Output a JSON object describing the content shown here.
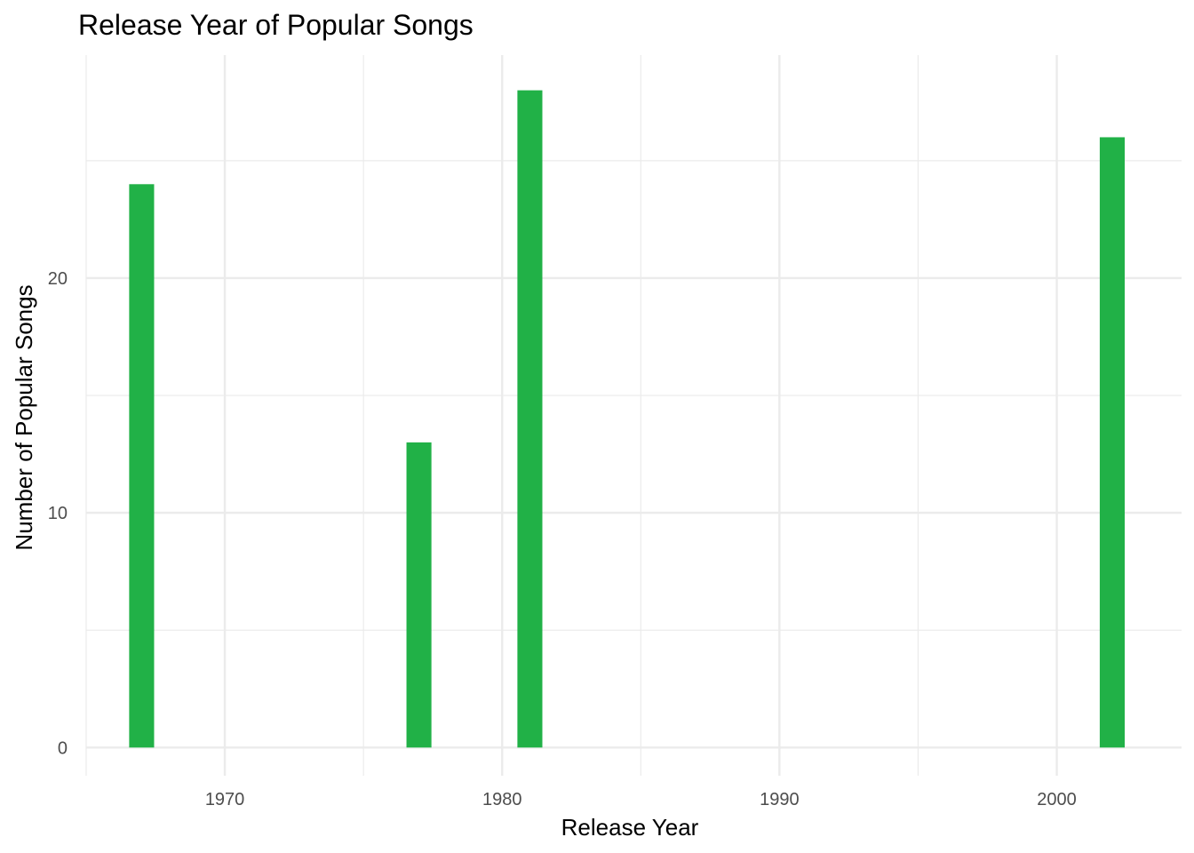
{
  "chart_data": {
    "type": "bar",
    "title": "Release Year of Popular Songs",
    "xlabel": "Release Year",
    "ylabel": "Number of Popular Songs",
    "x": [
      1967,
      1977,
      1981,
      2002
    ],
    "values": [
      24,
      13,
      28,
      26
    ],
    "x_ticks": [
      "1970",
      "1980",
      "1990",
      "2000"
    ],
    "x_tick_values": [
      1970,
      1980,
      1990,
      2000
    ],
    "y_ticks": [
      "0",
      "10",
      "20"
    ],
    "y_tick_values": [
      0,
      10,
      20
    ],
    "xlim": [
      1965,
      2004.5
    ],
    "ylim": [
      -1.2,
      29.5
    ],
    "bar_width_years": 0.9,
    "bar_color": "#21B147",
    "grid": true,
    "grid_color": "#ebebeb",
    "legend": "none"
  }
}
